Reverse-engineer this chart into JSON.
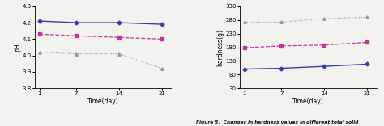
{
  "time": [
    1,
    7,
    14,
    21
  ],
  "ph": {
    "S1": [
      4.21,
      4.2,
      4.2,
      4.19
    ],
    "S2": [
      4.13,
      4.12,
      4.11,
      4.1
    ],
    "S3": [
      4.02,
      4.01,
      4.01,
      3.92
    ]
  },
  "hardness": {
    "S1": [
      100,
      103,
      110,
      118
    ],
    "S2": [
      178,
      185,
      188,
      198
    ],
    "S3": [
      272,
      272,
      285,
      290
    ]
  },
  "ph_ylim": [
    3.8,
    4.3
  ],
  "ph_yticks": [
    3.8,
    3.9,
    4.0,
    4.1,
    4.2,
    4.3
  ],
  "hardness_ylim": [
    30,
    330
  ],
  "hardness_yticks": [
    30,
    80,
    130,
    180,
    230,
    280,
    330
  ],
  "ph_ylabel": "pH",
  "hardness_ylabel": "hardness(g)",
  "xlabel": "Time(day)",
  "xticks": [
    1,
    7,
    14,
    21
  ],
  "s1_color": "#3a3aaa",
  "s2_color": "#cc3399",
  "s3_color": "#999999",
  "caption": "Figure 5.  Changes in hardness values in different total solid",
  "background": "#f2f2ee"
}
